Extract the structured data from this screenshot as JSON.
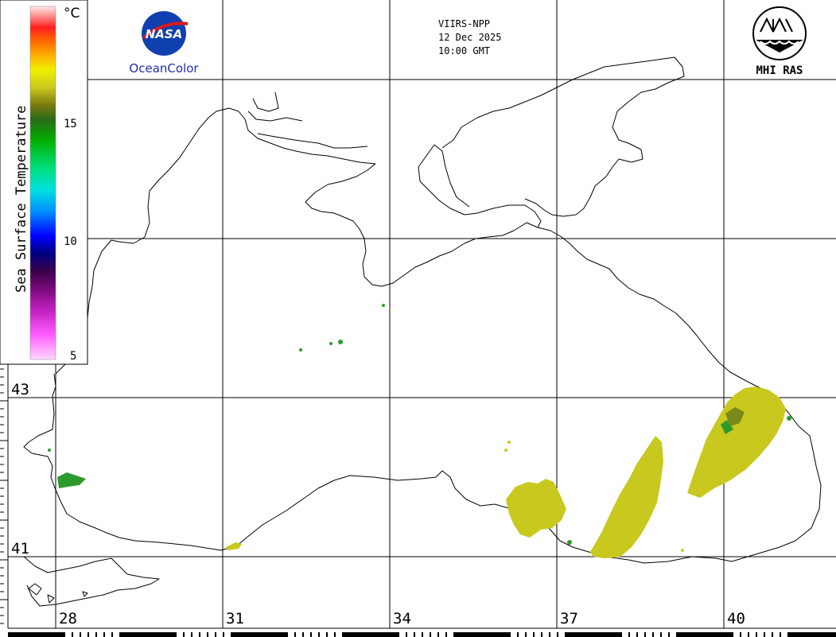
{
  "header": {
    "satellite": "VIIRS-NPP",
    "date": "12 Dec 2025",
    "time": "10:00 GMT"
  },
  "logos": {
    "nasa_text": "NASA",
    "oceancolor_text": "OceanColor",
    "mhi_text": "MHI RAS"
  },
  "colorbar": {
    "title": "Sea Surface Temperature",
    "unit": "°C",
    "ticks": [
      "15",
      "10",
      "5"
    ],
    "min": 5,
    "max": 20
  },
  "latitude_labels": [
    "43",
    "41"
  ],
  "longitude_labels": [
    "28",
    "31",
    "34",
    "37",
    "40"
  ],
  "colors": {
    "coast": "#000000",
    "sst_warm": "#c8c81e",
    "sst_green": "#2e9a2e"
  }
}
